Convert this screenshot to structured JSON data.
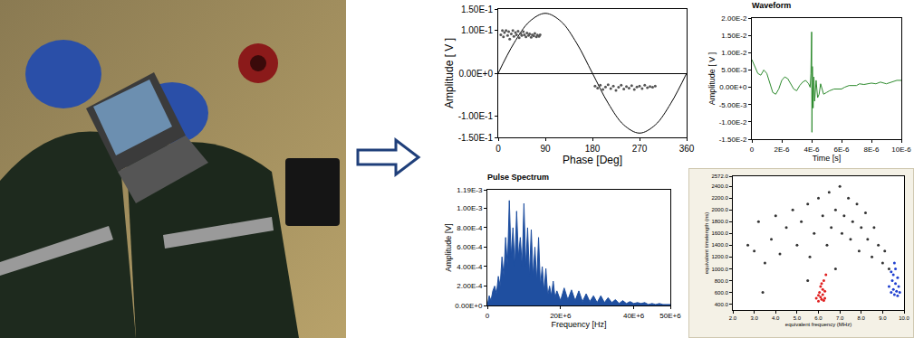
{
  "chart_data": [
    {
      "type": "scatter",
      "x_label": "Phase [Deg]",
      "y_label": "Amplitude [ V ]",
      "xlim": [
        0,
        360
      ],
      "xticks": [
        0,
        90,
        180,
        270,
        360
      ],
      "ylim": [
        -0.15,
        0.15
      ],
      "yticks": [
        {
          "value": -0.15,
          "label": "-1.50E-1"
        },
        {
          "value": -0.1,
          "label": "-1.00E-1"
        },
        {
          "value": 0,
          "label": "0.00E+0"
        },
        {
          "value": 0.1,
          "label": "1.00E-1"
        },
        {
          "value": 0.15,
          "label": "1.50E-1"
        }
      ],
      "grid": false,
      "series": [
        {
          "type": "line",
          "color": "#000000",
          "line_style": "solid",
          "x": [
            0,
            30,
            60,
            90,
            120,
            150,
            180,
            210,
            240,
            270,
            300,
            330,
            360
          ],
          "values": [
            0,
            0.07,
            0.121,
            0.14,
            0.121,
            0.07,
            0,
            -0.07,
            -0.121,
            -0.14,
            -0.121,
            -0.07,
            0
          ]
        },
        {
          "type": "scatter",
          "color": "#555555",
          "marker": "circle",
          "x": [
            5,
            8,
            10,
            12,
            15,
            18,
            20,
            22,
            25,
            28,
            30,
            33,
            35,
            38,
            40,
            43,
            45,
            48,
            50,
            53,
            55,
            58,
            60,
            63,
            65,
            68,
            70,
            73,
            75,
            78,
            80
          ],
          "values": [
            0.09,
            0.1,
            0.085,
            0.095,
            0.1,
            0.088,
            0.097,
            0.08,
            0.092,
            0.1,
            0.086,
            0.095,
            0.09,
            0.098,
            0.083,
            0.093,
            0.088,
            0.097,
            0.09,
            0.085,
            0.094,
            0.088,
            0.092,
            0.084,
            0.09,
            0.087,
            0.093,
            0.085,
            0.089,
            0.086,
            0.09
          ]
        },
        {
          "type": "scatter",
          "color": "#555555",
          "marker": "circle",
          "x": [
            185,
            190,
            195,
            200,
            205,
            210,
            215,
            220,
            225,
            230,
            235,
            240,
            245,
            250,
            255,
            260,
            265,
            270,
            275,
            280,
            285,
            290,
            295,
            300
          ],
          "values": [
            -0.03,
            -0.035,
            -0.028,
            -0.038,
            -0.032,
            -0.027,
            -0.036,
            -0.03,
            -0.04,
            -0.033,
            -0.028,
            -0.037,
            -0.031,
            -0.035,
            -0.029,
            -0.038,
            -0.032,
            -0.03,
            -0.036,
            -0.028,
            -0.034,
            -0.031,
            -0.033,
            -0.03
          ]
        }
      ]
    },
    {
      "type": "line",
      "title": "Waveform",
      "x_label": "Time [s]",
      "y_label": "Amplitude [ V ]",
      "xlim": [
        0,
        1e-05
      ],
      "xticks": [
        0,
        {
          "value": 2e-06,
          "label": "2E-6"
        },
        {
          "value": 4e-06,
          "label": "4E-6"
        },
        {
          "value": 6e-06,
          "label": "6E-6"
        },
        {
          "value": 8e-06,
          "label": "8E-6"
        },
        {
          "value": 1e-05,
          "label": "10E-6"
        }
      ],
      "ylim": [
        -0.015,
        0.02
      ],
      "yticks": [
        {
          "value": -0.015,
          "label": "-1.50E-2"
        },
        {
          "value": -0.01,
          "label": "-1.00E-2"
        },
        {
          "value": -0.005,
          "label": "-5.00E-3"
        },
        {
          "value": 0,
          "label": "0.00E+0"
        },
        {
          "value": 0.005,
          "label": "5.00E-3"
        },
        {
          "value": 0.01,
          "label": "1.00E-2"
        },
        {
          "value": 0.015,
          "label": "1.50E-2"
        },
        {
          "value": 0.02,
          "label": "2.00E-2"
        }
      ],
      "grid": false,
      "series": [
        {
          "type": "line",
          "color": "#2e8b2e",
          "line_style": "solid",
          "x": [
            0,
            2e-07,
            4e-07,
            6e-07,
            8e-07,
            1e-06,
            1.2e-06,
            1.4e-06,
            1.6e-06,
            1.8e-06,
            2e-06,
            2.2e-06,
            2.4e-06,
            2.6e-06,
            2.8e-06,
            3e-06,
            3.2e-06,
            3.4e-06,
            3.6e-06,
            3.8e-06,
            3.9e-06,
            3.95e-06,
            4e-06,
            4.02e-06,
            4.05e-06,
            4.1e-06,
            4.15e-06,
            4.2e-06,
            4.3e-06,
            4.4e-06,
            4.5e-06,
            4.6e-06,
            4.8e-06,
            5e-06,
            5.2e-06,
            5.5e-06,
            6e-06,
            6.2e-06,
            6.5e-06,
            7e-06,
            7.2e-06,
            7.5e-06,
            8e-06,
            8.3e-06,
            8.6e-06,
            9e-06,
            9.4e-06,
            9.7e-06,
            1e-05
          ],
          "values": [
            0.008,
            0.006,
            0.004,
            0.0035,
            0.005,
            0.004,
            0.001,
            -0.0015,
            -0.002,
            -0.0005,
            0.002,
            0.003,
            0.0025,
            0.001,
            -0.0005,
            -0.001,
            0.0005,
            0.0015,
            0.002,
            0.001,
            0.0,
            0.004,
            0.016,
            -0.013,
            0.006,
            -0.006,
            0.003,
            -0.004,
            0.002,
            -0.003,
            -0.002,
            0.001,
            -0.002,
            -0.0015,
            -0.001,
            -0.0005,
            -0.0005,
            0.0,
            0.0005,
            0.0005,
            0.001,
            0.0008,
            0.0012,
            0.001,
            0.0015,
            0.001,
            0.0015,
            0.002,
            0.002
          ]
        }
      ]
    },
    {
      "type": "area",
      "title": "Pulse Spectrum",
      "x_label": "Frequency [Hz]",
      "y_label": "Amplitude [V]",
      "xlim": [
        0,
        50000000
      ],
      "xticks": [
        0,
        {
          "value": 20000000,
          "label": "20E+6"
        },
        {
          "value": 40000000,
          "label": "40E+6"
        },
        {
          "value": 50000000,
          "label": "50E+6"
        }
      ],
      "ylim": [
        0,
        0.00119
      ],
      "yticks": [
        {
          "value": 0,
          "label": "0.00E+0"
        },
        {
          "value": 0.0002,
          "label": "2.00E-4"
        },
        {
          "value": 0.0004,
          "label": "4.00E-4"
        },
        {
          "value": 0.0006,
          "label": "6.00E-4"
        },
        {
          "value": 0.0008,
          "label": "8.00E-4"
        },
        {
          "value": 0.001,
          "label": "1.00E-3"
        },
        {
          "value": 0.00119,
          "label": "1.19E-3"
        }
      ],
      "grid": false,
      "series": [
        {
          "type": "area",
          "color": "#1f4fa0",
          "x": [
            0,
            500000.0,
            1000000.0,
            1500000.0,
            2000000.0,
            2500000.0,
            3000000.0,
            3500000.0,
            4000000.0,
            4500000.0,
            5000000.0,
            5500000.0,
            6000000.0,
            6500000.0,
            7000000.0,
            7500000.0,
            8000000.0,
            8500000.0,
            9000000.0,
            9500000.0,
            10000000.0,
            10500000.0,
            11000000.0,
            11500000.0,
            12000000.0,
            12500000.0,
            13000000.0,
            13500000.0,
            14000000.0,
            14500000.0,
            15000000.0,
            15500000.0,
            16000000.0,
            16500000.0,
            17000000.0,
            17500000.0,
            18000000.0,
            18500000.0,
            19000000.0,
            20000000.0,
            21000000.0,
            22000000.0,
            23000000.0,
            24000000.0,
            25000000.0,
            26000000.0,
            27000000.0,
            28000000.0,
            29000000.0,
            30000000.0,
            31000000.0,
            32000000.0,
            33000000.0,
            34000000.0,
            35000000.0,
            36000000.0,
            37000000.0,
            38000000.0,
            39000000.0,
            40000000.0,
            41000000.0,
            42000000.0,
            43000000.0,
            44000000.0,
            45000000.0,
            46000000.0,
            47000000.0,
            48000000.0,
            49000000.0,
            50000000.0
          ],
          "values": [
            0,
            0.0001,
            5e-05,
            0.00015,
            0.0002,
            0.00012,
            0.0003,
            0.0002,
            0.0005,
            0.0003,
            0.0007,
            0.0004,
            0.00108,
            0.0005,
            0.0008,
            0.0004,
            0.00097,
            0.0005,
            0.0007,
            0.0004,
            0.00105,
            0.0004,
            0.0008,
            0.0003,
            0.00078,
            0.0003,
            0.0006,
            0.00025,
            0.0007,
            0.0002,
            0.0004,
            0.00015,
            0.00038,
            0.0001,
            0.0002,
            0.0001,
            0.00025,
            8e-05,
            0.00015,
            5e-05,
            0.00018,
            6e-05,
            0.00016,
            5e-05,
            0.00015,
            4e-05,
            0.00012,
            4e-05,
            0.0001,
            3e-05,
            0.0001,
            3e-05,
            8e-05,
            3e-05,
            6e-05,
            2e-05,
            5e-05,
            2e-05,
            4e-05,
            2e-05,
            3e-05,
            2e-05,
            3e-05,
            1e-05,
            2e-05,
            1e-05,
            2e-05,
            1e-05,
            1e-05,
            1e-05
          ]
        }
      ]
    },
    {
      "type": "scatter",
      "x_label": "equivalent frequency (MHz)",
      "y_label": "equivalent timelength (ns)",
      "xlim": [
        2,
        10
      ],
      "xticks": [
        {
          "value": 2,
          "label": "2.0"
        },
        {
          "value": 3,
          "label": "3.0"
        },
        {
          "value": 4,
          "label": "4.0"
        },
        {
          "value": 5,
          "label": "5.0"
        },
        {
          "value": 6,
          "label": "6.0"
        },
        {
          "value": 7,
          "label": "7.0"
        },
        {
          "value": 8,
          "label": "8.0"
        },
        {
          "value": 9,
          "label": "9.0"
        },
        {
          "value": 10,
          "label": "10.0"
        }
      ],
      "ylim": [
        300,
        2572
      ],
      "yticks": [
        {
          "value": 400,
          "label": "400.0"
        },
        {
          "value": 600,
          "label": "600.0"
        },
        {
          "value": 800,
          "label": "800.0"
        },
        {
          "value": 1000,
          "label": "1000.0"
        },
        {
          "value": 1200,
          "label": "1200.0"
        },
        {
          "value": 1400,
          "label": "1400.0"
        },
        {
          "value": 1600,
          "label": "1600.0"
        },
        {
          "value": 1800,
          "label": "1800.0"
        },
        {
          "value": 2000,
          "label": "2000.0"
        },
        {
          "value": 2200,
          "label": "2200.0"
        },
        {
          "value": 2400,
          "label": "2400.0"
        },
        {
          "value": 2572,
          "label": "2572.0"
        }
      ],
      "grid": false,
      "series": [
        {
          "type": "scatter",
          "color": "#333333",
          "marker": "circle",
          "x": [
            2.7,
            3.0,
            3.2,
            3.5,
            3.8,
            4.0,
            4.2,
            4.5,
            4.8,
            5.0,
            5.2,
            5.5,
            5.6,
            5.8,
            6.0,
            6.2,
            6.4,
            6.5,
            6.6,
            6.8,
            7.0,
            7.1,
            7.2,
            7.4,
            7.5,
            7.6,
            7.8,
            7.9,
            8.0,
            8.2,
            8.3,
            8.5,
            8.6,
            8.8,
            9.0,
            9.1,
            9.3,
            3.4,
            5.5,
            6.8
          ],
          "values": [
            1400,
            1300,
            1800,
            1100,
            1500,
            1900,
            1250,
            1700,
            2000,
            1400,
            1800,
            2100,
            1200,
            1600,
            2200,
            1900,
            1400,
            2300,
            1700,
            2000,
            2400,
            1600,
            1900,
            2200,
            1500,
            1800,
            2100,
            1300,
            1700,
            1950,
            1500,
            1200,
            1700,
            1400,
            1100,
            1300,
            1000,
            600,
            800,
            1000
          ]
        },
        {
          "type": "scatter",
          "color": "#e02020",
          "marker": "circle",
          "x": [
            5.9,
            6.0,
            6.05,
            6.1,
            6.1,
            6.15,
            6.2,
            6.2,
            6.25,
            6.3,
            6.3,
            6.35,
            6.0,
            6.15,
            6.25
          ],
          "values": [
            500,
            450,
            600,
            520,
            700,
            480,
            650,
            560,
            800,
            500,
            620,
            900,
            550,
            750,
            460
          ]
        },
        {
          "type": "scatter",
          "color": "#2040d0",
          "marker": "circle",
          "x": [
            9.3,
            9.4,
            9.45,
            9.5,
            9.5,
            9.55,
            9.6,
            9.6,
            9.65,
            9.7,
            9.7,
            9.75,
            9.8,
            9.4,
            9.55
          ],
          "values": [
            700,
            600,
            800,
            650,
            900,
            560,
            750,
            1000,
            620,
            850,
            540,
            700,
            600,
            950,
            1100
          ]
        }
      ]
    }
  ]
}
